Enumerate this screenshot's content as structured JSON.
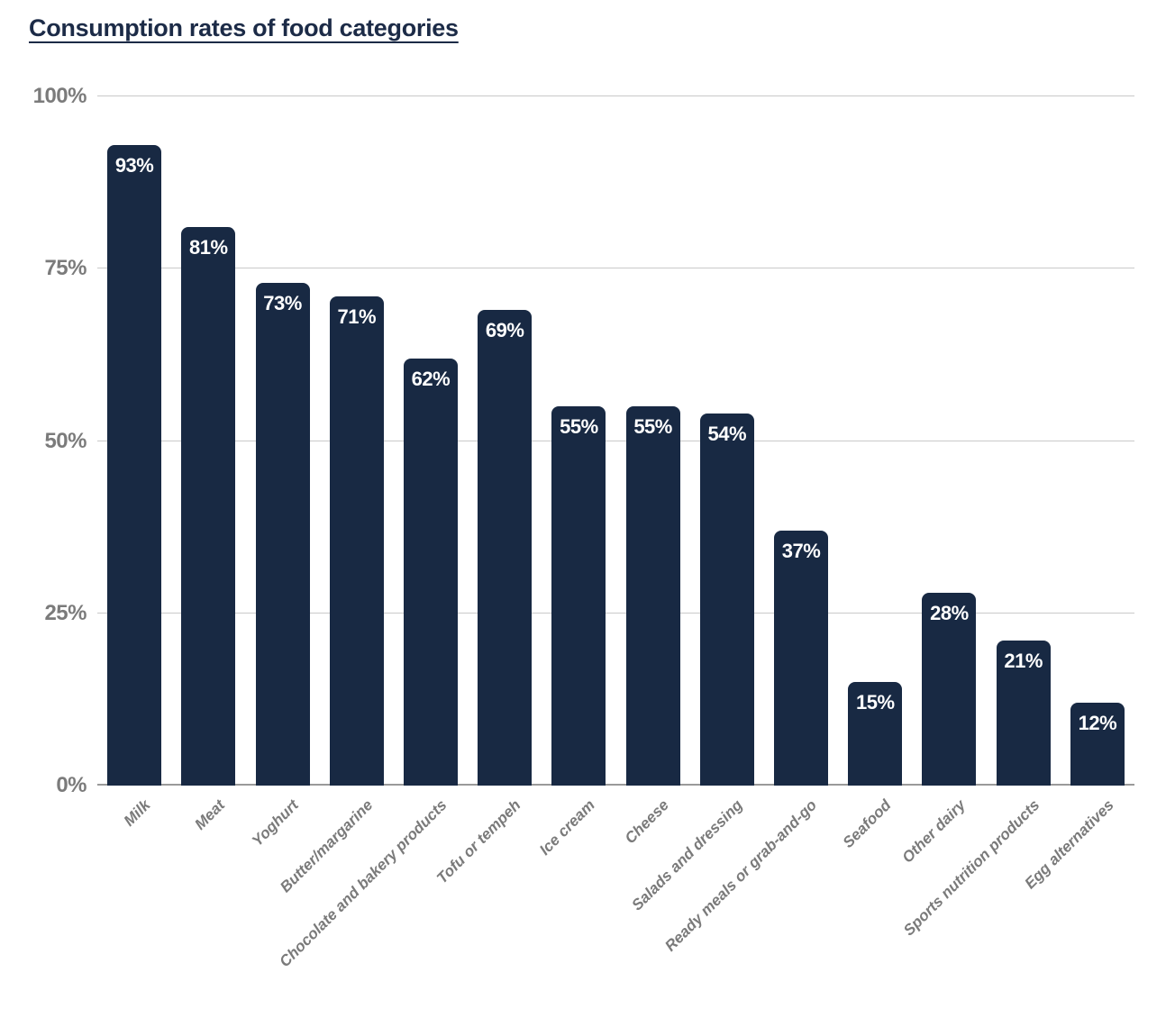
{
  "chart_data": {
    "type": "bar",
    "title": "Consumption rates of food categories",
    "categories": [
      "Milk",
      "Meat",
      "Yoghurt",
      "Butter/margarine",
      "Chocolate and bakery products",
      "Tofu or tempeh",
      "Ice cream",
      "Cheese",
      "Salads and dressing",
      "Ready meals or grab-and-go",
      "Seafood",
      "Other dairy",
      "Sports nutrition products",
      "Egg alternatives"
    ],
    "values": [
      93,
      81,
      73,
      71,
      62,
      69,
      55,
      55,
      54,
      37,
      15,
      28,
      21,
      12
    ],
    "value_labels": [
      "93%",
      "81%",
      "73%",
      "71%",
      "62%",
      "69%",
      "55%",
      "55%",
      "54%",
      "37%",
      "15%",
      "28%",
      "21%",
      "12%"
    ],
    "xlabel": "",
    "ylabel": "",
    "ylim": [
      0,
      100
    ],
    "yticks": [
      {
        "label": "0%",
        "value": 0
      },
      {
        "label": "25%",
        "value": 25
      },
      {
        "label": "50%",
        "value": 50
      },
      {
        "label": "75%",
        "value": 75
      },
      {
        "label": "100%",
        "value": 100
      }
    ],
    "grid": "horizontal",
    "legend": "none",
    "colors": {
      "bar": "#182943",
      "title": "#1c2b47",
      "value_label": "#ffffff",
      "tick_label": "#7b7b7b",
      "category_label": "#7a7a7a",
      "gridline": "#c9c9c9",
      "axis_line": "#9a9a9a"
    }
  }
}
